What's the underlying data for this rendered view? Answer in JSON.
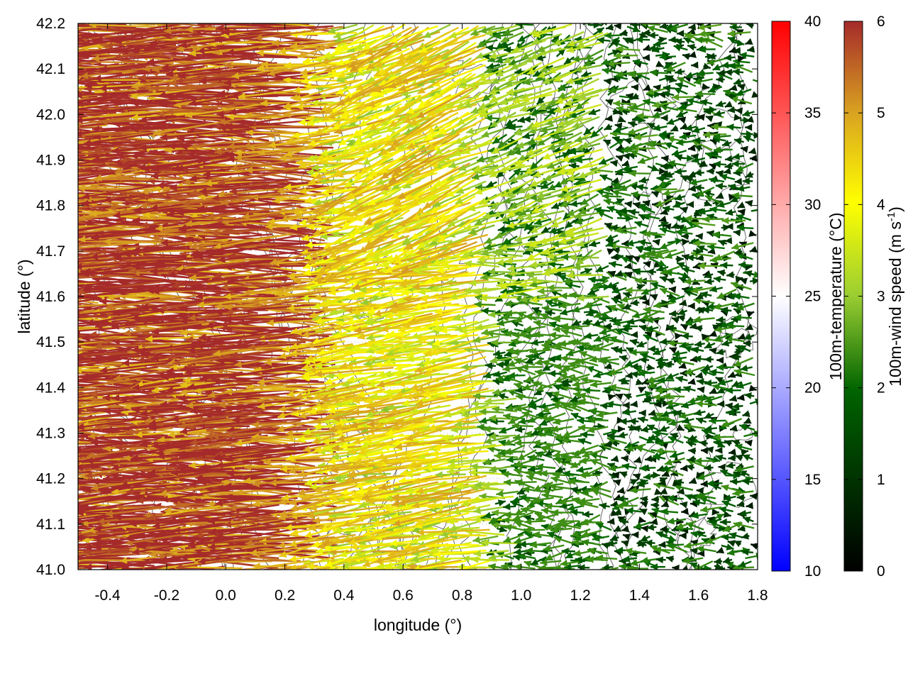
{
  "chart_data": {
    "type": "vector-field",
    "xlabel": "longitude (°)",
    "ylabel": "latitude (°)",
    "xlim": [
      -0.5,
      1.8
    ],
    "ylim": [
      41.0,
      42.2
    ],
    "xticks": [
      "-0.4",
      "-0.2",
      "0.0",
      "0.2",
      "0.4",
      "0.6",
      "0.8",
      "1.0",
      "1.2",
      "1.4",
      "1.6",
      "1.8"
    ],
    "yticks": [
      "41.0",
      "41.1",
      "41.2",
      "41.3",
      "41.4",
      "41.5",
      "41.6",
      "41.7",
      "41.8",
      "41.9",
      "42.0",
      "42.1",
      "42.2"
    ],
    "grid": true,
    "contours": true,
    "colorbars": [
      {
        "label": "100m-temperature (°C)",
        "range": [
          10,
          40
        ],
        "ticks": [
          "10",
          "15",
          "20",
          "25",
          "30",
          "35",
          "40"
        ],
        "colors": [
          "#0000ff",
          "#ffffff",
          "#ff0000"
        ]
      },
      {
        "label": "100m-wind speed (m s",
        "label_sup": "-1",
        "label_close": ")",
        "range": [
          0,
          6
        ],
        "ticks": [
          "0",
          "1",
          "2",
          "3",
          "4",
          "5",
          "6"
        ],
        "colors": [
          "#000000",
          "#006400",
          "#9acd32",
          "#ffff00",
          "#daa520",
          "#a52a2a"
        ]
      }
    ],
    "wind_field": {
      "description_levels": "speed in m s-1, direction mostly westward",
      "zones": [
        {
          "lon_range": [
            -0.5,
            0.4
          ],
          "speed": 5.8,
          "u": -1.0,
          "v": 0.0
        },
        {
          "lon_range": [
            0.4,
            0.9
          ],
          "speed": 4.0,
          "u": -1.0,
          "v": 0.15
        },
        {
          "lon_range": [
            0.9,
            1.3
          ],
          "speed": 2.5,
          "u": -1.0,
          "v": 0.05
        },
        {
          "lon_range": [
            1.3,
            1.8
          ],
          "speed": 1.5,
          "u": -1.0,
          "v": 0.0
        }
      ]
    }
  }
}
